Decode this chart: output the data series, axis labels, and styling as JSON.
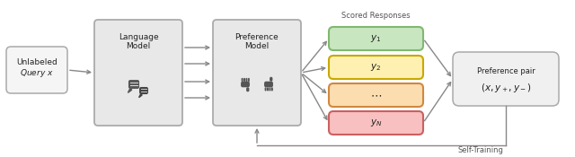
{
  "bg_color": "#ffffff",
  "box_fill_main": "#e8e8e8",
  "box_fill_query": "#f5f5f5",
  "box_edge": "#aaaaaa",
  "y1_fill": "#c8e6c0",
  "y1_edge": "#80b870",
  "y2_fill": "#fdf0b0",
  "y2_edge": "#c8a800",
  "y3_fill": "#fcddb0",
  "y3_edge": "#d08840",
  "yN_fill": "#f8c0c0",
  "yN_edge": "#cc6060",
  "pref_fill": "#f0f0f0",
  "pref_edge": "#aaaaaa",
  "arrow_color": "#888888",
  "text_color": "#222222",
  "icon_color": "#444444",
  "scored_label": "Scored Responses",
  "self_training_label": "Self-Training",
  "label_query_1": "Unlabeled",
  "label_query_2": "Query",
  "label_lm_1": "Language",
  "label_lm_2": "Model",
  "label_pm_1": "Preference",
  "label_pm_2": "Model",
  "label_pp_1": "Preference pair",
  "label_pp_2": "$(x, y_+, y_-)$"
}
